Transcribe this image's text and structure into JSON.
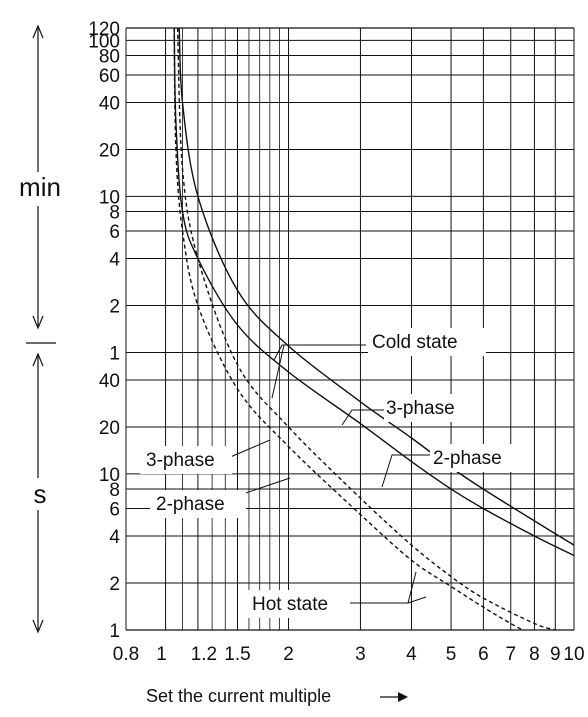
{
  "chart_data": {
    "type": "line",
    "title": "",
    "xlabel": "Set the current multiple",
    "xscale": "log",
    "xlim": [
      0.8,
      10
    ],
    "x_ticks": [
      "0.8",
      "1",
      "1.2",
      "1.5",
      "2",
      "3",
      "4",
      "5",
      "6",
      "7",
      "8",
      "9",
      "10"
    ],
    "y_ticks_min": [
      "1",
      "2",
      "4",
      "6",
      "8",
      "10",
      "20",
      "40",
      "60",
      "80",
      "100",
      "120"
    ],
    "y_ticks_s": [
      "1",
      "2",
      "4",
      "6",
      "8",
      "10",
      "20",
      "40"
    ],
    "y_unit_upper": "min",
    "y_unit_lower": "s",
    "grid": true,
    "curves": [
      {
        "group": "Cold state",
        "phase": "3-phase",
        "style": "solid",
        "points": [
          [
            1.05,
            7200
          ],
          [
            1.06,
            1800
          ],
          [
            1.1,
            480
          ],
          [
            1.2,
            240
          ],
          [
            1.5,
            90
          ],
          [
            2,
            45
          ],
          [
            3,
            21
          ],
          [
            4,
            12
          ],
          [
            5,
            8
          ],
          [
            6,
            6
          ],
          [
            8,
            4
          ],
          [
            10,
            3
          ]
        ]
      },
      {
        "group": "Cold state",
        "phase": "2-phase",
        "style": "solid",
        "points": [
          [
            1.08,
            7200
          ],
          [
            1.1,
            2400
          ],
          [
            1.2,
            600
          ],
          [
            1.5,
            150
          ],
          [
            2,
            66
          ],
          [
            3,
            29
          ],
          [
            4,
            17
          ],
          [
            5,
            11
          ],
          [
            6,
            8
          ],
          [
            8,
            5
          ],
          [
            10,
            3.5
          ]
        ]
      },
      {
        "group": "Hot state",
        "phase": "3-phase",
        "style": "dashed",
        "points": [
          [
            1.05,
            7200
          ],
          [
            1.06,
            1200
          ],
          [
            1.1,
            360
          ],
          [
            1.2,
            120
          ],
          [
            1.5,
            35
          ],
          [
            2,
            15
          ],
          [
            3,
            5.5
          ],
          [
            4,
            2.8
          ],
          [
            5,
            1.9
          ],
          [
            6,
            1.4
          ],
          [
            7,
            1.1
          ],
          [
            7.5,
            1
          ]
        ]
      },
      {
        "group": "Hot state",
        "phase": "2-phase",
        "style": "dashed",
        "points": [
          [
            1.07,
            7200
          ],
          [
            1.1,
            900
          ],
          [
            1.2,
            240
          ],
          [
            1.5,
            50
          ],
          [
            2,
            20
          ],
          [
            3,
            7
          ],
          [
            4,
            3.5
          ],
          [
            5,
            2.2
          ],
          [
            6,
            1.6
          ],
          [
            8,
            1.1
          ],
          [
            9,
            1
          ]
        ]
      }
    ],
    "annotations": [
      "Cold state",
      "3-phase",
      "2-phase",
      "3-phase",
      "2-phase",
      "Hot state"
    ]
  }
}
